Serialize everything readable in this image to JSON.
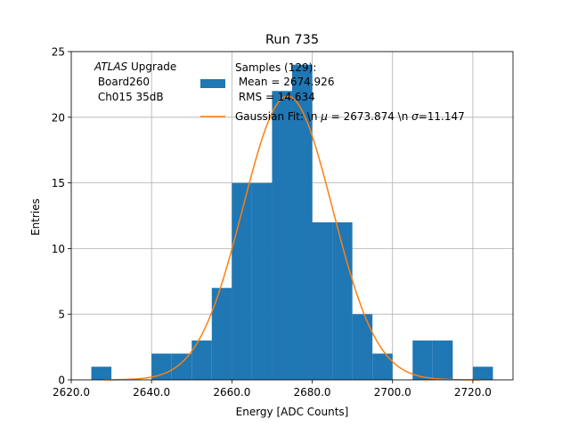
{
  "chart_data": {
    "type": "bar",
    "title": "Run 735",
    "xlabel": "Energy [ADC Counts]",
    "ylabel": "Entries",
    "xlim": [
      2620,
      2730
    ],
    "ylim": [
      0,
      25
    ],
    "xticks": [
      2620,
      2640,
      2660,
      2680,
      2700,
      2720
    ],
    "xtick_labels": [
      "2620.0",
      "2640.0",
      "2660.0",
      "2680.0",
      "2700.0",
      "2720.0"
    ],
    "yticks": [
      0,
      5,
      10,
      15,
      20,
      25
    ],
    "ytick_labels": [
      "0",
      "5",
      "10",
      "15",
      "20",
      "25"
    ],
    "grid": true,
    "bar_color": "#1f77b4",
    "fit_color": "#ff7f0e",
    "bins": [
      {
        "left": 2625,
        "right": 2630,
        "count": 1
      },
      {
        "left": 2630,
        "right": 2635,
        "count": 0
      },
      {
        "left": 2635,
        "right": 2640,
        "count": 0
      },
      {
        "left": 2640,
        "right": 2645,
        "count": 2
      },
      {
        "left": 2645,
        "right": 2650,
        "count": 2
      },
      {
        "left": 2650,
        "right": 2655,
        "count": 3
      },
      {
        "left": 2655,
        "right": 2660,
        "count": 7
      },
      {
        "left": 2660,
        "right": 2665,
        "count": 15
      },
      {
        "left": 2665,
        "right": 2670,
        "count": 15
      },
      {
        "left": 2670,
        "right": 2675,
        "count": 22
      },
      {
        "left": 2675,
        "right": 2680,
        "count": 24
      },
      {
        "left": 2680,
        "right": 2685,
        "count": 12
      },
      {
        "left": 2685,
        "right": 2690,
        "count": 12
      },
      {
        "left": 2690,
        "right": 2695,
        "count": 5
      },
      {
        "left": 2695,
        "right": 2700,
        "count": 2
      },
      {
        "left": 2700,
        "right": 2705,
        "count": 0
      },
      {
        "left": 2705,
        "right": 2710,
        "count": 3
      },
      {
        "left": 2710,
        "right": 2715,
        "count": 3
      },
      {
        "left": 2715,
        "right": 2720,
        "count": 0
      },
      {
        "left": 2720,
        "right": 2725,
        "count": 1
      }
    ],
    "fit": {
      "mu": 2673.874,
      "sigma": 11.147,
      "amplitude": 21.6,
      "x_range": [
        2628,
        2722
      ]
    },
    "annotation": {
      "line1_italic": "ATLAS",
      "line1_rest": " Upgrade",
      "line2": " Board260",
      "line3": " Ch015 35dB"
    },
    "legend": {
      "placement": "upper-center",
      "histogram": {
        "line1": "Samples (129):",
        "line2": " Mean = 2674.926",
        "line3": " RMS = 14.634"
      },
      "fit": {
        "prefix": "Gaussian Fit: \\n ",
        "mu_symbol": "μ",
        "mu_part": " = 2673.874 \\n ",
        "sigma_symbol": "σ",
        "sigma_part": "=11.147"
      }
    }
  }
}
